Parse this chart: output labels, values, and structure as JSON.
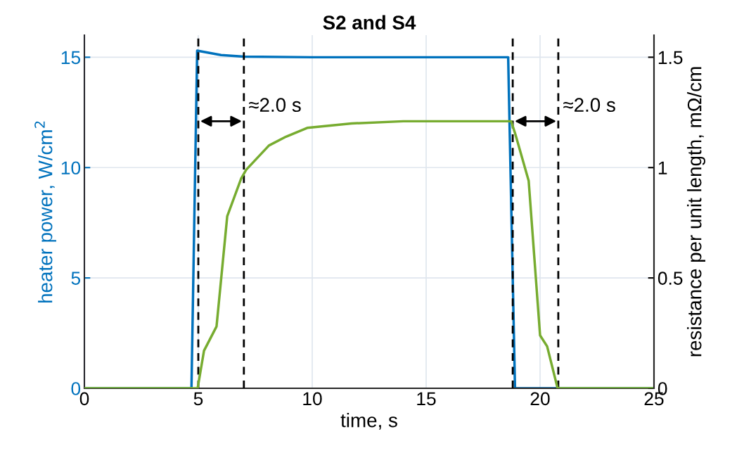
{
  "chart_data": {
    "type": "line",
    "title": "S2 and S4",
    "xlabel": "time, s",
    "ylabel": "heater power, W/cm$^{2}$",
    "y2label": "resistance per unit length, mΩ/cm",
    "series": [
      {
        "color": "#0072bd",
        "x": [
          0,
          4.7,
          4.95,
          6.0,
          7.0,
          10.0,
          18.6,
          18.9,
          25
        ],
        "values": [
          0,
          0,
          15.3,
          15.1,
          15.03,
          15.0,
          15.0,
          0,
          0
        ]
      },
      {
        "color": "#77ac30",
        "axis": "y2",
        "x": [
          0,
          4.97,
          5.25,
          5.8,
          6.27,
          6.88,
          7.1,
          8.1,
          8.85,
          9.78,
          11.73,
          14.0,
          16.0,
          18.73,
          18.92,
          19.5,
          20.0,
          20.31,
          20.77,
          25
        ],
        "values": [
          0,
          0,
          0.17,
          0.28,
          0.78,
          0.95,
          0.99,
          1.1,
          1.14,
          1.18,
          1.2,
          1.21,
          1.21,
          1.21,
          1.15,
          0.94,
          0.24,
          0.19,
          0,
          0
        ]
      }
    ],
    "xlim": [
      0,
      25
    ],
    "xticks": [
      0,
      5,
      10,
      15,
      20,
      25
    ],
    "ylim": [
      0,
      16
    ],
    "yticks": [
      0,
      5,
      10,
      15
    ],
    "y2lim": [
      0,
      1.6
    ],
    "y2ticks": [
      0,
      0.5,
      1,
      1.5
    ],
    "grid": true,
    "ref_lines": [
      {
        "axis": "x",
        "value": 5,
        "color": "#000000",
        "line_style": "dashed"
      },
      {
        "axis": "x",
        "value": 7,
        "color": "#000000",
        "line_style": "dashed"
      },
      {
        "axis": "x",
        "value": 18.8,
        "color": "#000000",
        "line_style": "dashed"
      },
      {
        "axis": "x",
        "value": 20.8,
        "color": "#000000",
        "line_style": "dashed"
      }
    ],
    "annotations": [
      {
        "text": "≈2.0 s",
        "x": 7,
        "y": 12.1
      },
      {
        "text": "≈2.0 s",
        "x": 20.8,
        "y": 12.1
      }
    ]
  }
}
